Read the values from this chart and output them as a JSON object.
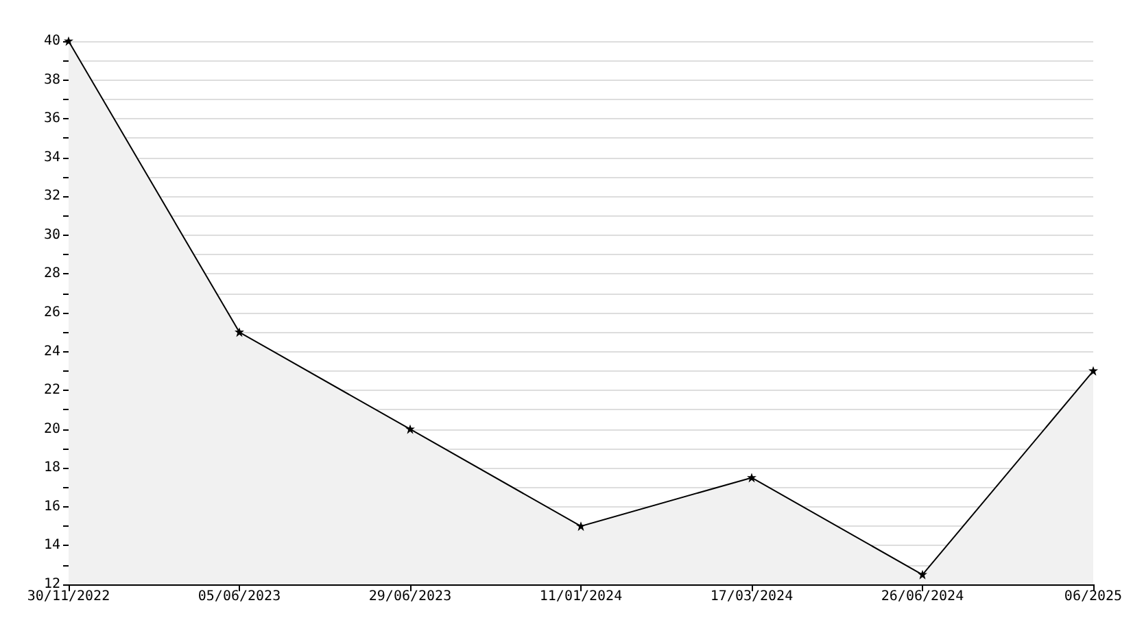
{
  "chart_data": {
    "type": "area",
    "categories": [
      "30/11/2022",
      "05/06/2023",
      "29/06/2023",
      "11/01/2024",
      "17/03/2024",
      "26/06/2024",
      "06/2025"
    ],
    "series": [
      {
        "color": "#000000",
        "values": [
          40,
          25,
          20,
          15,
          17.5,
          12.5,
          23
        ]
      }
    ],
    "ylim": [
      12,
      40
    ],
    "yticks": [
      12,
      {
        "value": 13,
        "label": null
      },
      14,
      {
        "value": 15,
        "label": null
      },
      16,
      {
        "value": 17,
        "label": null
      },
      18,
      {
        "value": 19,
        "label": null
      },
      20,
      {
        "value": 21,
        "label": null
      },
      22,
      {
        "value": 23,
        "label": null
      },
      24,
      {
        "value": 25,
        "label": null
      },
      26,
      {
        "value": 27,
        "label": null
      },
      28,
      {
        "value": 29,
        "label": null
      },
      30,
      {
        "value": 31,
        "label": null
      },
      32,
      {
        "value": 33,
        "label": null
      },
      34,
      {
        "value": 35,
        "label": null
      },
      36,
      {
        "value": 37,
        "label": null
      },
      38,
      {
        "value": 39,
        "label": null
      },
      40
    ],
    "grid": "y",
    "marker": "star",
    "line_style": "solid"
  }
}
